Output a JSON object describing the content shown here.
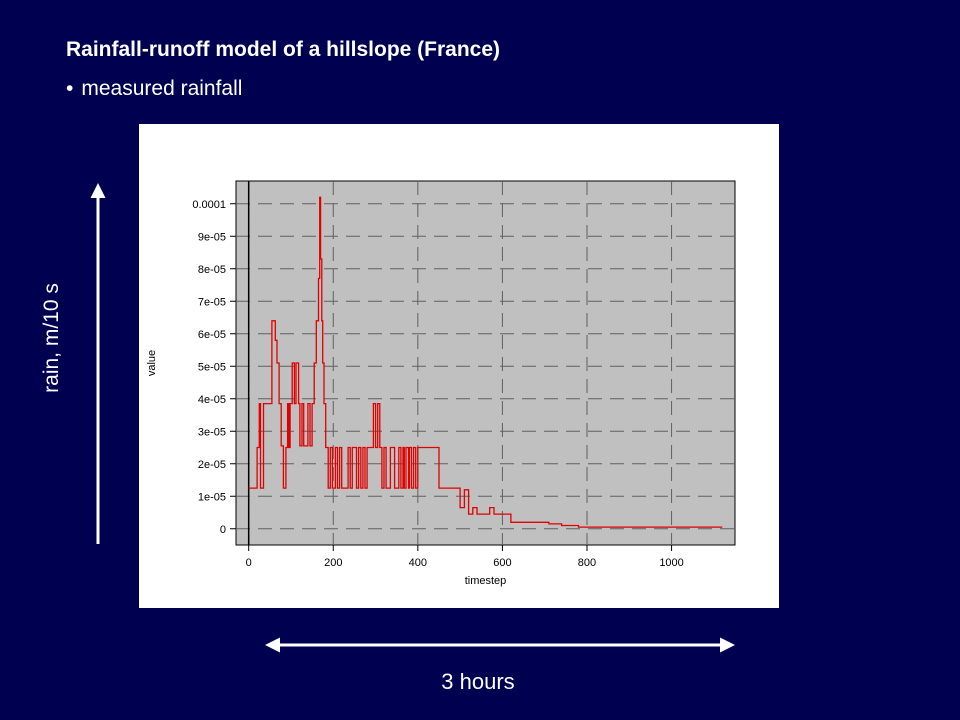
{
  "slide": {
    "title": "Rainfall-runoff model of a hillslope (France)",
    "bullet": "measured rainfall",
    "bullet_symbol": "•",
    "rain_axis_annotation": "rain, m/10 s",
    "duration_annotation": "3 hours"
  },
  "colors": {
    "background": "#000050",
    "plot_background": "#c0c0c0",
    "series": "#e00000",
    "annotation": "#ffffff"
  },
  "chart_data": {
    "type": "line",
    "step": true,
    "xlabel": "timestep",
    "ylabel": "value",
    "xlim": [
      -30,
      1150
    ],
    "ylim": [
      -5e-06,
      0.000107
    ],
    "grid": true,
    "xticks": [
      0,
      200,
      400,
      600,
      800,
      1000
    ],
    "xtick_labels": [
      "0",
      "200",
      "400",
      "600",
      "800",
      "1000"
    ],
    "yticks": [
      0,
      1e-05,
      2e-05,
      3e-05,
      4e-05,
      5e-05,
      6e-05,
      7e-05,
      8e-05,
      9e-05,
      0.0001
    ],
    "ytick_labels": [
      "0",
      "1e-05",
      "2e-05",
      "3e-05",
      "4e-05",
      "5e-05",
      "6e-05",
      "7e-05",
      "8e-05",
      "9e-05",
      "0.0001"
    ],
    "series": [
      {
        "x": [
          0,
          20,
          25,
          28,
          35,
          55,
          63,
          67,
          72,
          77,
          82,
          88,
          92,
          95,
          98,
          103,
          108,
          112,
          118,
          121,
          126,
          130,
          140,
          145,
          150,
          155,
          160,
          165,
          168,
          170,
          173,
          175,
          178,
          182,
          188,
          193,
          198,
          205,
          210,
          215,
          220,
          230,
          235,
          240,
          245,
          255,
          260,
          265,
          270,
          275,
          280,
          290,
          295,
          300,
          305,
          310,
          315,
          320,
          325,
          335,
          345,
          355,
          360,
          365,
          368,
          372,
          378,
          380,
          385,
          390,
          395,
          400,
          420,
          440,
          450,
          460,
          480,
          490,
          500,
          510,
          520,
          530,
          540,
          550,
          570,
          580,
          590,
          600,
          620,
          640,
          710,
          740,
          780,
          840,
          880,
          950,
          1010,
          1120
        ],
        "y": [
          1.25e-05,
          2.5e-05,
          3.85e-05,
          1.25e-05,
          3.85e-05,
          6.4e-05,
          5.8e-05,
          5.1e-05,
          3.85e-05,
          2.55e-05,
          1.25e-05,
          2.5e-05,
          3.85e-05,
          2.5e-05,
          3.85e-05,
          5.1e-05,
          3.85e-05,
          5.1e-05,
          3.85e-05,
          2.55e-05,
          3.85e-05,
          2.55e-05,
          3.85e-05,
          2.55e-05,
          3.85e-05,
          5.1e-05,
          6.4e-05,
          7.7e-05,
          0.000102,
          8.3e-05,
          6.4e-05,
          5.1e-05,
          3.85e-05,
          2.5e-05,
          1.25e-05,
          2.5e-05,
          1.25e-05,
          2.5e-05,
          1.25e-05,
          2.5e-05,
          1.25e-05,
          1.25e-05,
          2.5e-05,
          1.25e-05,
          2.5e-05,
          1.25e-05,
          2.5e-05,
          1.25e-05,
          2.5e-05,
          1.25e-05,
          2.5e-05,
          2.5e-05,
          3.85e-05,
          2.5e-05,
          3.85e-05,
          2.5e-05,
          1.25e-05,
          2.5e-05,
          1.25e-05,
          2.5e-05,
          1.25e-05,
          2.5e-05,
          1.25e-05,
          2.5e-05,
          1.25e-05,
          2.5e-05,
          1.25e-05,
          2.5e-05,
          1.25e-05,
          2.5e-05,
          1.25e-05,
          2.5e-05,
          2.5e-05,
          2.5e-05,
          1.25e-05,
          1.25e-05,
          1.25e-05,
          1.25e-05,
          6.5e-06,
          1.2e-05,
          4.5e-06,
          6.5e-06,
          4.5e-06,
          4.5e-06,
          6.5e-06,
          4.5e-06,
          4.5e-06,
          4.5e-06,
          2e-06,
          2e-06,
          1.5e-06,
          1e-06,
          5e-07,
          5e-07,
          5e-07,
          5e-07,
          5e-07,
          5e-07
        ]
      }
    ]
  }
}
